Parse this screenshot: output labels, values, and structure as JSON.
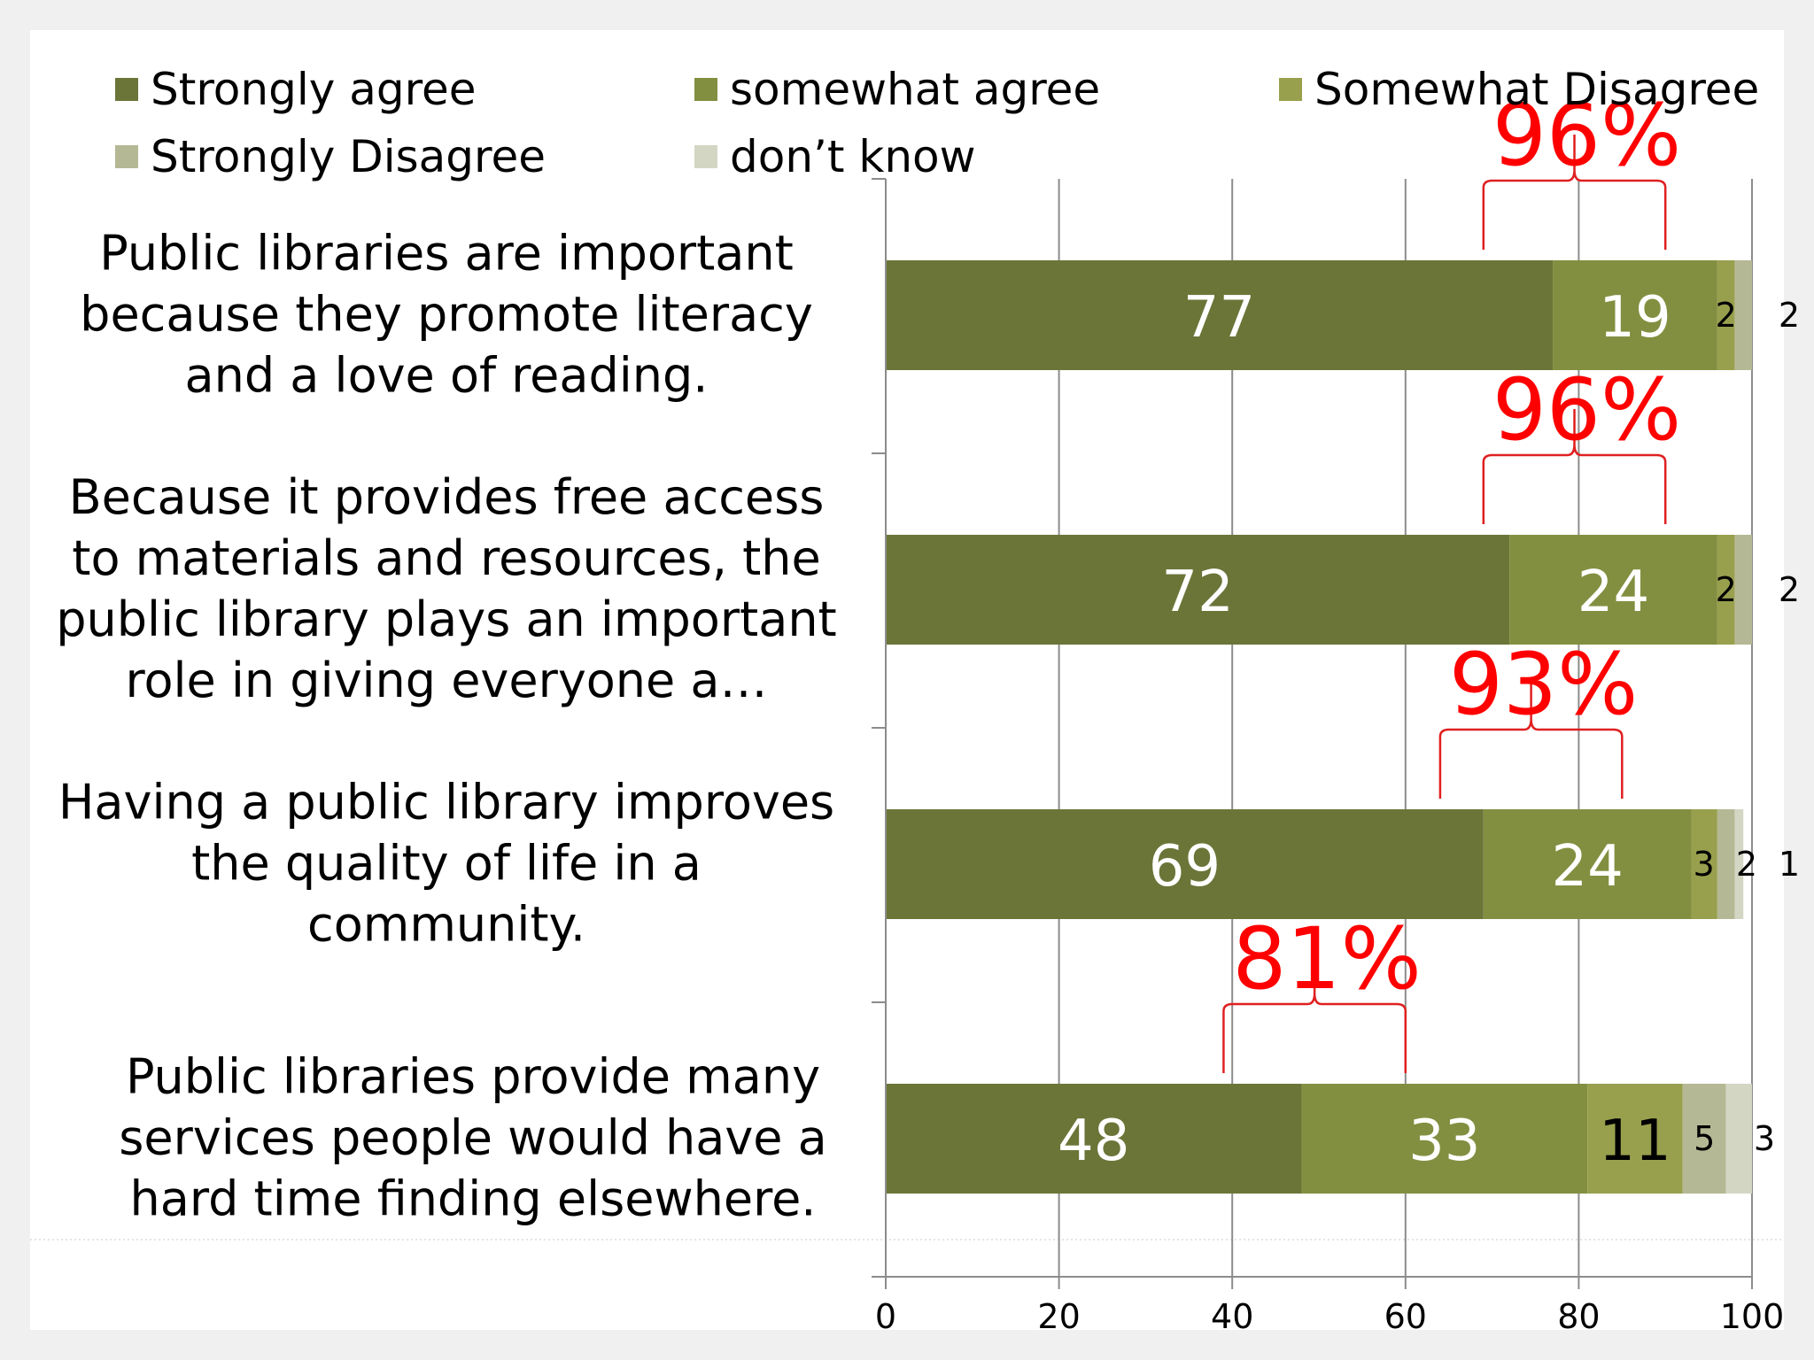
{
  "chart_data": {
    "type": "bar",
    "orientation": "horizontal",
    "stacked": true,
    "categories": [
      [
        "Public libraries are important",
        "because they promote literacy",
        "and a love of reading."
      ],
      [
        "Because it provides free access",
        "to materials and resources, the",
        "public library plays an important",
        "role in giving everyone a…"
      ],
      [
        "Having a public library improves",
        "the quality of life in a",
        "community."
      ],
      [
        "Public libraries provide many",
        "services people would have a",
        "hard time finding elsewhere."
      ]
    ],
    "series": [
      {
        "name": "Strongly agree",
        "color": "#6b7538",
        "values": [
          77,
          72,
          69,
          48
        ]
      },
      {
        "name": "somewhat agree",
        "color": "#838f40",
        "values": [
          19,
          24,
          24,
          33
        ]
      },
      {
        "name": "Somewhat Disagree",
        "color": "#98a04e",
        "values": [
          2,
          2,
          3,
          11
        ]
      },
      {
        "name": "Strongly  Disagree",
        "color": "#b5b894",
        "values": [
          2,
          2,
          2,
          5
        ]
      },
      {
        "name": "don’t know",
        "color": "#d3d6c3",
        "values": [
          0,
          0,
          1,
          3
        ]
      }
    ],
    "data_labels": [
      [
        "77",
        "19",
        "2",
        "2"
      ],
      [
        "72",
        "24",
        "2",
        "2"
      ],
      [
        "69",
        "24",
        "3",
        "2",
        "1"
      ],
      [
        "48",
        "33",
        "11",
        "5",
        "3"
      ]
    ],
    "annotations": [
      "96%",
      "96%",
      "93%",
      "81%"
    ],
    "xlim": [
      0,
      100
    ],
    "xticks": [
      0,
      20,
      40,
      60,
      80,
      100
    ],
    "grid": true,
    "legend_position": "top"
  }
}
